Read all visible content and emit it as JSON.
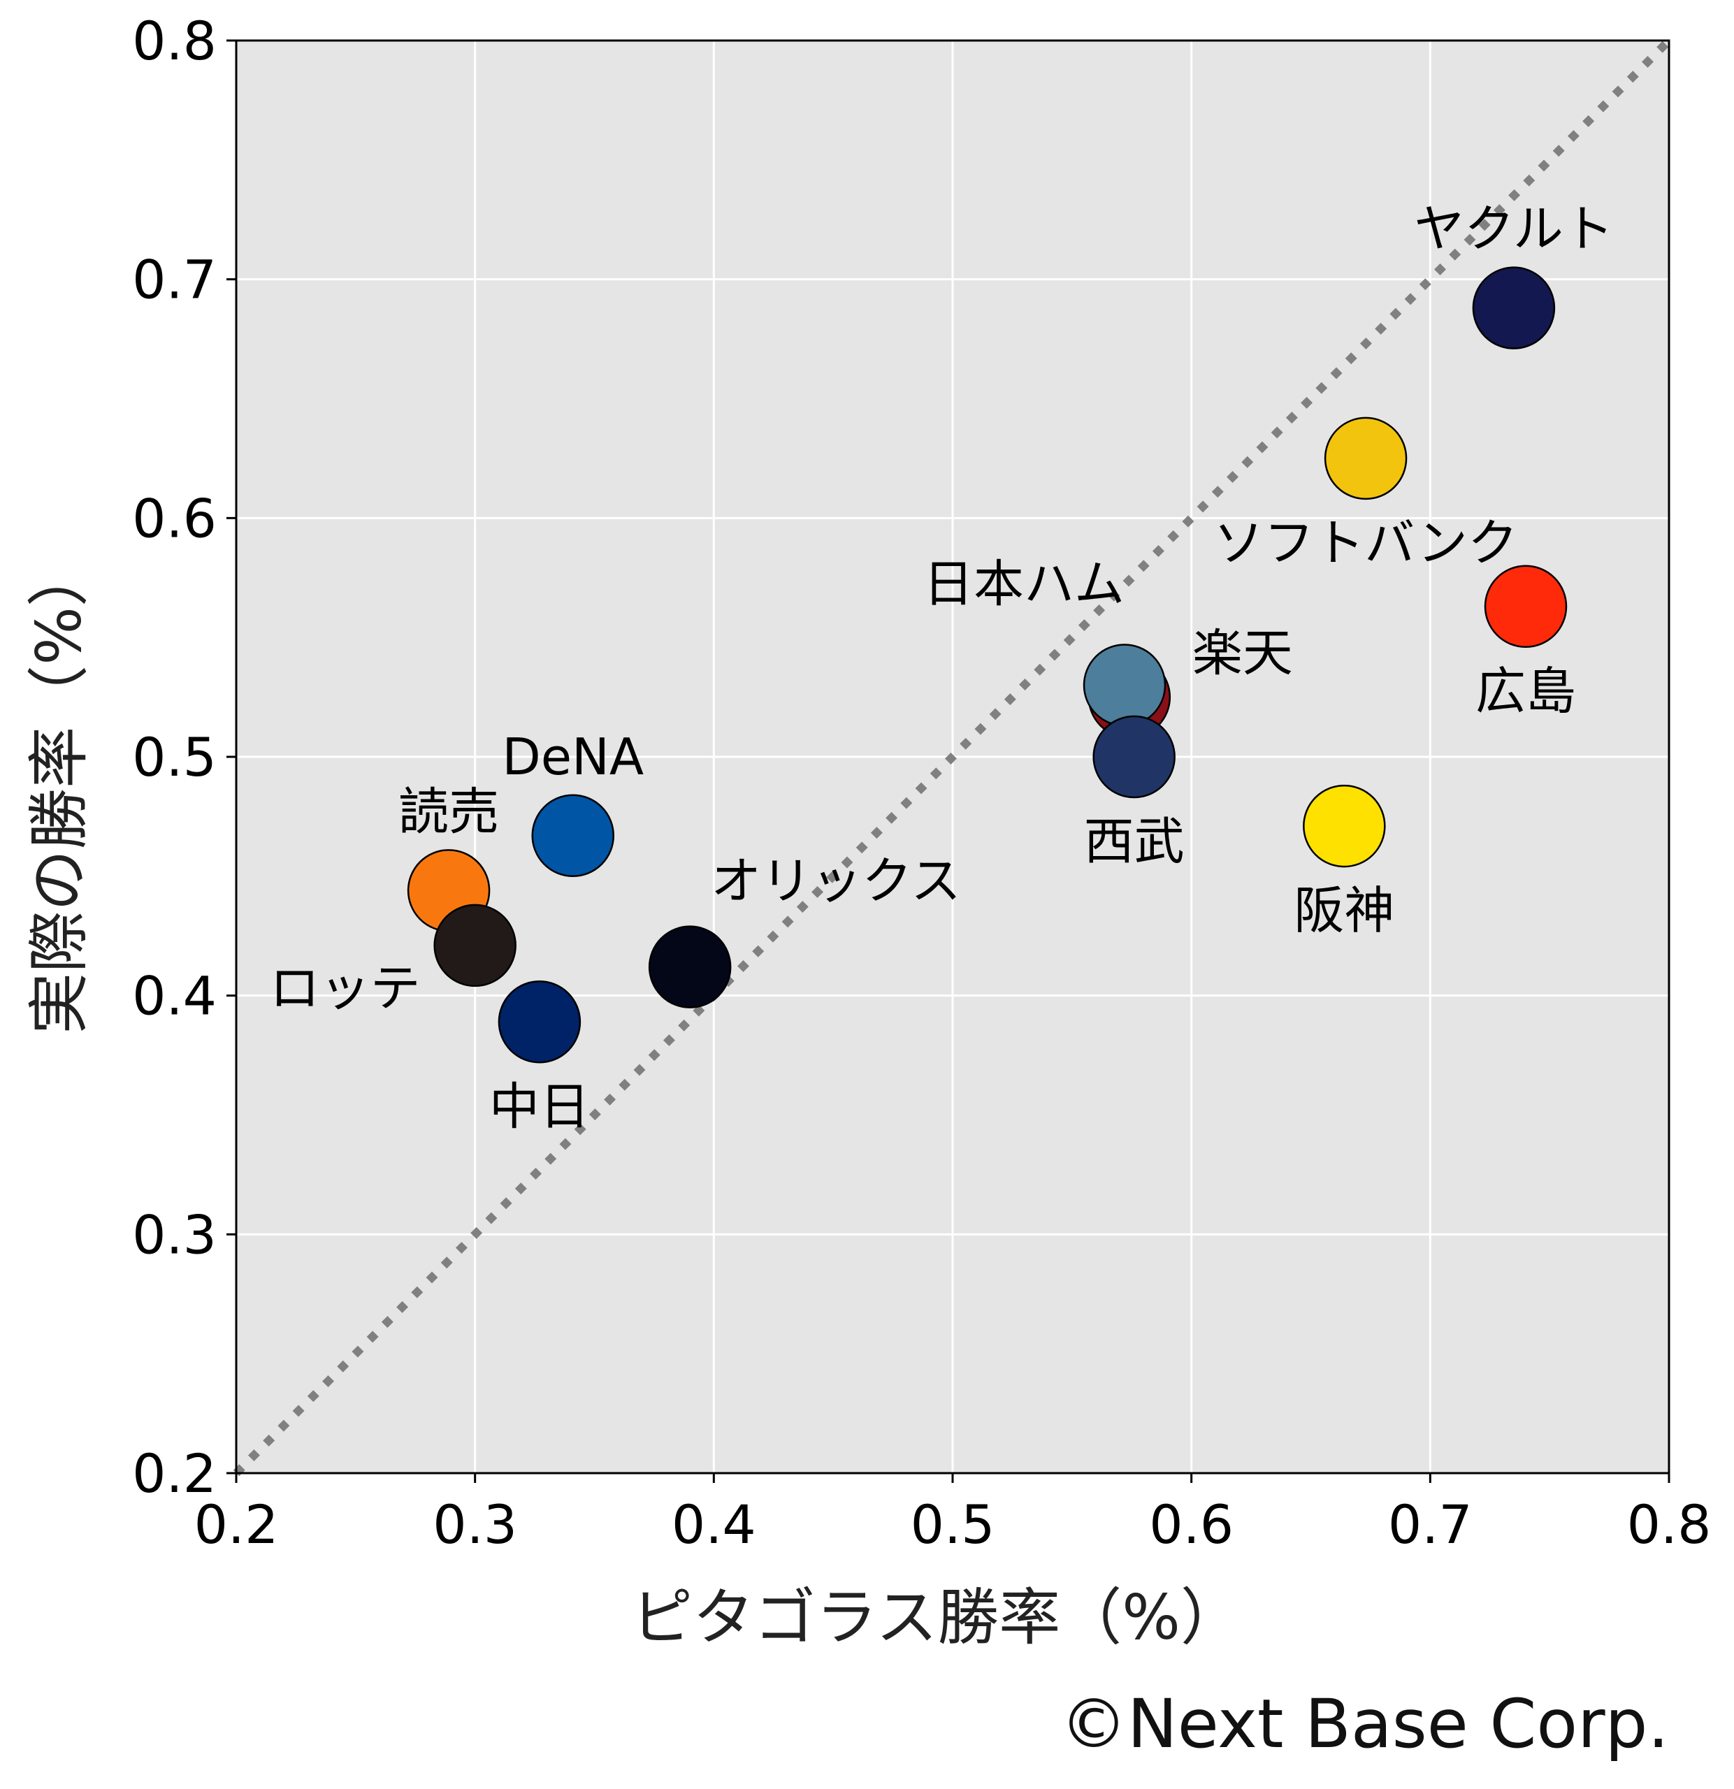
{
  "chart_data": {
    "type": "scatter",
    "xlabel": "ピタゴラス勝率（%）",
    "ylabel": "実際の勝率（%）",
    "xlim": [
      0.2,
      0.8
    ],
    "ylim": [
      0.2,
      0.8
    ],
    "xticks": [
      "0.2",
      "0.3",
      "0.4",
      "0.5",
      "0.6",
      "0.7",
      "0.8"
    ],
    "yticks": [
      "0.2",
      "0.3",
      "0.4",
      "0.5",
      "0.6",
      "0.7",
      "0.8"
    ],
    "grid": true,
    "reference_line": {
      "from": [
        0.2,
        0.2
      ],
      "to": [
        0.8,
        0.8
      ],
      "style": "dotted",
      "color": "#808080"
    },
    "background": "#e5e5e5",
    "points": [
      {
        "label": "ヤクルト",
        "x": 0.735,
        "y": 0.688,
        "color": "#141850",
        "label_pos": "above"
      },
      {
        "label": "ソフトバンク",
        "x": 0.673,
        "y": 0.625,
        "color": "#f2c40e",
        "label_pos": "below"
      },
      {
        "label": "広島",
        "x": 0.74,
        "y": 0.563,
        "color": "#ff2a0a",
        "label_pos": "below"
      },
      {
        "label": "楽天",
        "x": 0.574,
        "y": 0.525,
        "color": "#8a1018",
        "label_pos": "right"
      },
      {
        "label": "日本ハム",
        "x": 0.572,
        "y": 0.53,
        "color": "#4d7e9b",
        "label_pos": "above-left"
      },
      {
        "label": "西武",
        "x": 0.576,
        "y": 0.5,
        "color": "#203566",
        "label_pos": "below"
      },
      {
        "label": "阪神",
        "x": 0.664,
        "y": 0.471,
        "color": "#ffe100",
        "label_pos": "below"
      },
      {
        "label": "DeNA",
        "x": 0.341,
        "y": 0.467,
        "color": "#0055a5",
        "label_pos": "above"
      },
      {
        "label": "読売",
        "x": 0.289,
        "y": 0.444,
        "color": "#f8780f",
        "label_pos": "above"
      },
      {
        "label": "ロッテ",
        "x": 0.3,
        "y": 0.421,
        "color": "#221a18",
        "label_pos": "below-left"
      },
      {
        "label": "中日",
        "x": 0.327,
        "y": 0.389,
        "color": "#002266",
        "label_pos": "below"
      },
      {
        "label": "オリックス",
        "x": 0.39,
        "y": 0.412,
        "color": "#040718",
        "label_pos": "above-right"
      }
    ]
  },
  "footer": {
    "copyright": "©Next Base Corp."
  }
}
